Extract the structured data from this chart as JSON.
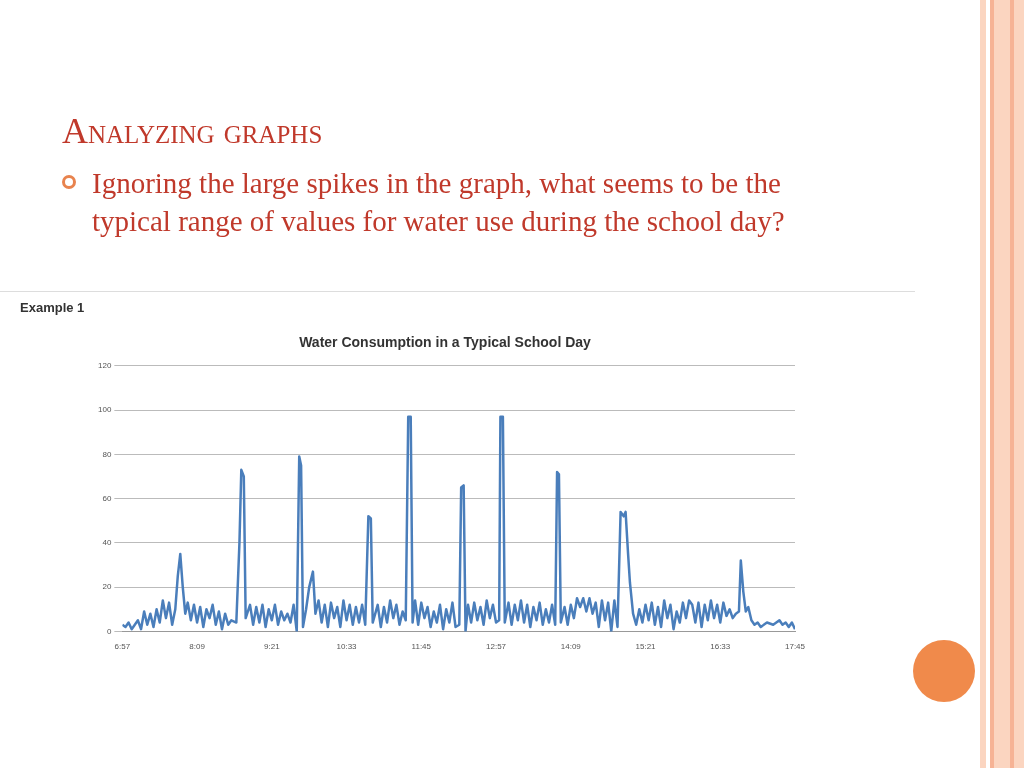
{
  "chart_data": {
    "type": "line",
    "title": "Water Consumption in a Typical School Day",
    "annotations": [
      "Analyzing graphs",
      "Ignoring the large spikes in the graph, what seems to be the typical range of values for water use during the school day?",
      "Example 1"
    ],
    "x": [
      6.95,
      7.0,
      7.05,
      7.1,
      7.15,
      7.2,
      7.25,
      7.3,
      7.35,
      7.4,
      7.45,
      7.5,
      7.55,
      7.6,
      7.65,
      7.7,
      7.75,
      7.8,
      7.84,
      7.88,
      7.92,
      7.96,
      8.0,
      8.05,
      8.1,
      8.15,
      8.2,
      8.25,
      8.3,
      8.35,
      8.4,
      8.45,
      8.5,
      8.55,
      8.6,
      8.65,
      8.7,
      8.78,
      8.83,
      8.86,
      8.9,
      8.93,
      9.0,
      9.05,
      9.1,
      9.15,
      9.2,
      9.25,
      9.3,
      9.35,
      9.4,
      9.45,
      9.5,
      9.55,
      9.6,
      9.65,
      9.7,
      9.75,
      9.79,
      9.82,
      9.85,
      9.9,
      9.95,
      10.01,
      10.05,
      10.1,
      10.15,
      10.2,
      10.25,
      10.3,
      10.35,
      10.4,
      10.45,
      10.5,
      10.55,
      10.6,
      10.65,
      10.7,
      10.75,
      10.8,
      10.85,
      10.9,
      10.94,
      10.97,
      11.05,
      11.1,
      11.15,
      11.2,
      11.25,
      11.3,
      11.35,
      11.4,
      11.45,
      11.5,
      11.54,
      11.58,
      11.61,
      11.65,
      11.7,
      11.75,
      11.8,
      11.85,
      11.9,
      11.95,
      12.0,
      12.05,
      12.1,
      12.15,
      12.2,
      12.25,
      12.3,
      12.36,
      12.39,
      12.43,
      12.46,
      12.5,
      12.55,
      12.6,
      12.65,
      12.7,
      12.75,
      12.8,
      12.85,
      12.9,
      12.95,
      13.0,
      13.02,
      13.06,
      13.09,
      13.15,
      13.2,
      13.25,
      13.3,
      13.35,
      13.4,
      13.45,
      13.5,
      13.55,
      13.6,
      13.65,
      13.7,
      13.75,
      13.8,
      13.85,
      13.9,
      13.93,
      13.96,
      13.99,
      14.05,
      14.1,
      14.15,
      14.2,
      14.25,
      14.3,
      14.35,
      14.4,
      14.45,
      14.5,
      14.55,
      14.6,
      14.65,
      14.7,
      14.75,
      14.8,
      14.85,
      14.9,
      14.95,
      15.0,
      15.03,
      15.07,
      15.1,
      15.15,
      15.2,
      15.25,
      15.3,
      15.35,
      15.4,
      15.45,
      15.5,
      15.55,
      15.6,
      15.65,
      15.7,
      15.75,
      15.8,
      15.85,
      15.9,
      15.95,
      16.0,
      16.05,
      16.1,
      16.15,
      16.2,
      16.25,
      16.3,
      16.35,
      16.4,
      16.45,
      16.5,
      16.55,
      16.6,
      16.65,
      16.7,
      16.75,
      16.8,
      16.85,
      16.88,
      16.92,
      16.96,
      17.0,
      17.05,
      17.1,
      17.15,
      17.2,
      17.3,
      17.4,
      17.5,
      17.55,
      17.6,
      17.65,
      17.7,
      17.75
    ],
    "series": [
      {
        "color": "#4a7ebb",
        "values": [
          3,
          2,
          4,
          1,
          3,
          5,
          1,
          9,
          3,
          8,
          2,
          10,
          4,
          14,
          6,
          13,
          3,
          10,
          25,
          35,
          20,
          8,
          13,
          5,
          12,
          4,
          11,
          2,
          10,
          6,
          12,
          3,
          9,
          1,
          8,
          3,
          5,
          4,
          40,
          73,
          70,
          6,
          12,
          3,
          11,
          4,
          12,
          2,
          10,
          5,
          12,
          3,
          9,
          5,
          8,
          4,
          12,
          0,
          79,
          75,
          2,
          10,
          20,
          27,
          8,
          14,
          4,
          12,
          2,
          13,
          6,
          11,
          2,
          14,
          5,
          12,
          3,
          11,
          4,
          12,
          3,
          52,
          51,
          4,
          12,
          2,
          11,
          4,
          14,
          6,
          12,
          3,
          9,
          5,
          97,
          97,
          4,
          14,
          3,
          13,
          6,
          11,
          2,
          9,
          4,
          12,
          1,
          10,
          4,
          13,
          2,
          3,
          65,
          66,
          0,
          12,
          4,
          13,
          5,
          11,
          3,
          14,
          6,
          12,
          4,
          5,
          97,
          97,
          4,
          13,
          3,
          12,
          5,
          14,
          4,
          12,
          2,
          11,
          5,
          13,
          3,
          10,
          4,
          12,
          3,
          72,
          71,
          4,
          11,
          3,
          12,
          6,
          15,
          11,
          15,
          9,
          15,
          8,
          13,
          2,
          14,
          5,
          13,
          0,
          14,
          2,
          54,
          52,
          54,
          35,
          22,
          8,
          3,
          10,
          4,
          12,
          5,
          13,
          3,
          11,
          2,
          14,
          6,
          12,
          1,
          9,
          4,
          13,
          6,
          14,
          12,
          4,
          13,
          2,
          12,
          5,
          14,
          6,
          12,
          4,
          13,
          7,
          10,
          6,
          8,
          9,
          32,
          18,
          9,
          11,
          5,
          3,
          4,
          2,
          4,
          3,
          5,
          3,
          4,
          2,
          4,
          1
        ]
      }
    ],
    "xlim": [
      6.95,
      17.75
    ],
    "xticks": [
      {
        "value": 6.95,
        "label": "6:57"
      },
      {
        "value": 8.15,
        "label": "8:09"
      },
      {
        "value": 9.35,
        "label": "9:21"
      },
      {
        "value": 10.55,
        "label": "10:33"
      },
      {
        "value": 11.75,
        "label": "11:45"
      },
      {
        "value": 12.95,
        "label": "12:57"
      },
      {
        "value": 14.15,
        "label": "14:09"
      },
      {
        "value": 15.35,
        "label": "15:21"
      },
      {
        "value": 16.55,
        "label": "16:33"
      },
      {
        "value": 17.75,
        "label": "17:45"
      }
    ],
    "ylim": [
      0,
      120
    ],
    "yticks": [
      0,
      20,
      40,
      60,
      80,
      100,
      120
    ],
    "grid": "y",
    "legend": false,
    "marker": "none",
    "line_style": "solid"
  }
}
